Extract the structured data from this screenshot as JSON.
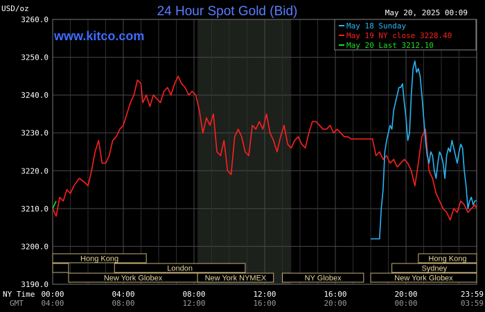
{
  "chart_data": {
    "type": "line",
    "title": "24 Hour Spot Gold (Bid)",
    "site": "www.kitco.com",
    "unit_label": "USD/oz",
    "timestamp": "May 20, 2025 00:09",
    "ylim": [
      3190,
      3260
    ],
    "yticks": [
      "3260.0",
      "3250.0",
      "3240.0",
      "3230.0",
      "3220.0",
      "3210.0",
      "3200.0",
      "3190.0"
    ],
    "ytick_values": [
      3260,
      3250,
      3240,
      3230,
      3220,
      3210,
      3200,
      3190
    ],
    "xlim": [
      0,
      24
    ],
    "x_row_label_ny": "NY Time",
    "x_row_label_gmt": "GMT",
    "xticks_ny": [
      "00:00",
      "04:00",
      "08:00",
      "12:00",
      "16:00",
      "20:00",
      "23:59"
    ],
    "xticks_gmt": [
      "04:00",
      "08:00",
      "12:00",
      "16:00",
      "20:00",
      "00:00",
      "03:59"
    ],
    "xtick_hours": [
      0,
      4,
      8,
      12,
      16,
      20,
      24
    ],
    "shaded_region_hours": [
      8.2,
      13.5
    ],
    "legend": [
      {
        "label": "May 18 Sunday",
        "color": "#29b6f6"
      },
      {
        "label": "May 19 NY close 3228.40",
        "color": "#ff2020"
      },
      {
        "label": "May 20 Last 3212.10",
        "color": "#22dd22"
      }
    ],
    "sessions": [
      {
        "label": "Hong Kong",
        "start": 0,
        "end": 5.3
      },
      {
        "label": "",
        "start": 0,
        "end": 0.9
      },
      {
        "label": "London",
        "start": 3.5,
        "end": 10.9
      },
      {
        "label": "New York Globex",
        "start": 0.9,
        "end": 8.2
      },
      {
        "label": "New York NYMEX",
        "start": 8.2,
        "end": 12.5
      },
      {
        "label": "NY Globex",
        "start": 13.0,
        "end": 17.6
      },
      {
        "label": "Hong Kong",
        "start": 20.7,
        "end": 24
      },
      {
        "label": "Sydney",
        "start": 19.2,
        "end": 24
      },
      {
        "label": "New York Globex",
        "start": 18.0,
        "end": 24
      }
    ],
    "series": [
      {
        "name": "May 19 NY close 3228.40",
        "color": "#ff2020",
        "x": [
          0,
          0.2,
          0.4,
          0.6,
          0.8,
          1.0,
          1.2,
          1.5,
          1.8,
          2.0,
          2.2,
          2.4,
          2.6,
          2.8,
          3.0,
          3.2,
          3.4,
          3.6,
          3.8,
          4.0,
          4.2,
          4.4,
          4.6,
          4.8,
          5.0,
          5.1,
          5.3,
          5.5,
          5.7,
          5.9,
          6.1,
          6.3,
          6.5,
          6.7,
          6.9,
          7.1,
          7.3,
          7.5,
          7.7,
          7.9,
          8.1,
          8.3,
          8.5,
          8.7,
          8.9,
          9.1,
          9.3,
          9.5,
          9.7,
          9.9,
          10.1,
          10.3,
          10.5,
          10.7,
          10.9,
          11.1,
          11.3,
          11.5,
          11.7,
          11.9,
          12.1,
          12.3,
          12.5,
          12.7,
          12.9,
          13.1,
          13.3,
          13.5,
          13.7,
          13.9,
          14.1,
          14.3,
          14.5,
          14.7,
          14.9,
          15.1,
          15.3,
          15.5,
          15.7,
          15.9,
          16.1,
          16.3,
          16.5,
          16.7,
          16.9,
          17.1,
          17.3,
          17.5,
          17.7,
          17.9,
          18.1,
          18.3,
          18.5,
          18.7,
          18.9,
          19.1,
          19.3,
          19.5,
          19.7,
          19.9,
          20.1,
          20.3,
          20.5,
          20.7,
          20.9,
          21.1,
          21.3,
          21.5,
          21.7,
          21.9,
          22.1,
          22.3,
          22.5,
          22.7,
          22.9,
          23.1,
          23.3,
          23.5,
          23.7,
          23.9,
          24.0
        ],
        "values": [
          3210,
          3208,
          3213,
          3212,
          3215,
          3214,
          3216,
          3218,
          3217,
          3216,
          3220,
          3225,
          3228,
          3222,
          3222,
          3224,
          3228,
          3229,
          3231,
          3232,
          3235,
          3238,
          3240,
          3244,
          3243,
          3238,
          3240,
          3237,
          3240,
          3239,
          3238,
          3241,
          3242,
          3240,
          3243,
          3245,
          3243,
          3242,
          3240,
          3241,
          3240,
          3236,
          3230,
          3234,
          3232,
          3235,
          3225,
          3224,
          3228,
          3220,
          3219,
          3229,
          3231,
          3229,
          3225,
          3224,
          3232,
          3231,
          3233,
          3231,
          3235,
          3230,
          3228,
          3225,
          3229,
          3232,
          3227,
          3226,
          3228,
          3229,
          3227,
          3226,
          3230,
          3233,
          3233,
          3232,
          3231,
          3231,
          3232,
          3230,
          3231,
          3230,
          3229,
          3229,
          3228.4,
          3228.4,
          3228.4,
          3228.4,
          3228.4,
          3228.4,
          3228.4,
          3224,
          3225,
          3223,
          3224,
          3222,
          3223,
          3221,
          3222,
          3223,
          3222,
          3220,
          3216,
          3222,
          3229,
          3231,
          3220,
          3218,
          3214,
          3212,
          3210,
          3209,
          3207,
          3210,
          3209,
          3212,
          3211,
          3209,
          3210,
          3211,
          3210
        ]
      },
      {
        "name": "May 18 Sunday",
        "color": "#29b6f6",
        "x": [
          18.0,
          18.5,
          18.6,
          18.7,
          18.8,
          18.9,
          19.0,
          19.1,
          19.2,
          19.3,
          19.4,
          19.5,
          19.6,
          19.7,
          19.8,
          19.9,
          20.0,
          20.1,
          20.2,
          20.3,
          20.4,
          20.5,
          20.6,
          20.7,
          20.8,
          20.9,
          21.0,
          21.1,
          21.2,
          21.3,
          21.4,
          21.5,
          21.6,
          21.7,
          21.8,
          21.9,
          22.0,
          22.1,
          22.2,
          22.3,
          22.4,
          22.5,
          22.6,
          22.7,
          22.8,
          22.9,
          23.0,
          23.1,
          23.2,
          23.3,
          23.4,
          23.5,
          23.6,
          23.7,
          23.8,
          23.9,
          24.0
        ],
        "values": [
          3202,
          3202,
          3210,
          3215,
          3225,
          3228,
          3230,
          3232,
          3231,
          3236,
          3238,
          3240,
          3242,
          3242,
          3243,
          3238,
          3234,
          3228,
          3230,
          3240,
          3247,
          3249,
          3246,
          3247,
          3245,
          3240,
          3234,
          3228,
          3224,
          3222,
          3225,
          3224,
          3220,
          3218,
          3222,
          3225,
          3224,
          3222,
          3218,
          3224,
          3226,
          3225,
          3228,
          3226,
          3224,
          3222,
          3225,
          3227,
          3226,
          3220,
          3216,
          3210,
          3212,
          3213,
          3211,
          3212,
          3212.1
        ]
      },
      {
        "name": "May 20 Last 3212.10",
        "color": "#22dd22",
        "x": [
          0,
          0.1,
          0.2
        ],
        "values": [
          3210,
          3211,
          3212
        ]
      }
    ]
  }
}
